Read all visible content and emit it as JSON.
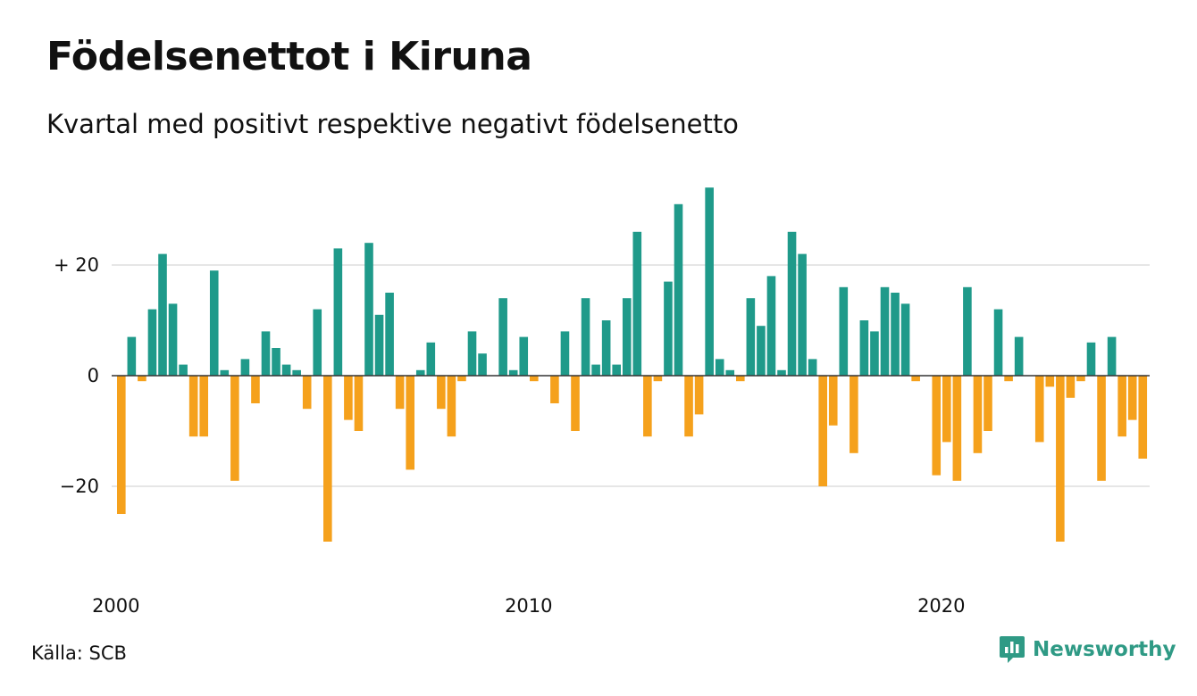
{
  "header": {
    "title": "Födelsenettot i Kiruna",
    "subtitle": "Kvartal med positivt respektive negativt födelsenetto"
  },
  "footer": {
    "source": "Källa: SCB",
    "brand": "Newsworthy"
  },
  "colors": {
    "positive": "#1f9a8a",
    "negative": "#f5a11c",
    "grid": "#dddddd",
    "baseline": "#333333",
    "brand": "#2f9a85"
  },
  "chart_data": {
    "type": "bar",
    "x_start": "2000 Q1",
    "values": [
      -25,
      7,
      -1,
      12,
      22,
      13,
      2,
      -11,
      -11,
      19,
      1,
      -19,
      3,
      -5,
      8,
      5,
      2,
      1,
      -6,
      12,
      -30,
      23,
      -8,
      -10,
      24,
      11,
      15,
      -6,
      -17,
      1,
      6,
      -6,
      -11,
      -1,
      8,
      4,
      0,
      14,
      1,
      7,
      -1,
      0,
      -5,
      8,
      -10,
      14,
      2,
      10,
      2,
      14,
      26,
      -11,
      -1,
      17,
      31,
      -11,
      -7,
      34,
      3,
      1,
      -1,
      14,
      9,
      18,
      1,
      26,
      22,
      3,
      -20,
      -9,
      16,
      -14,
      10,
      8,
      16,
      15,
      13,
      -1,
      0,
      -18,
      -12,
      -19,
      16,
      -14,
      -10,
      12,
      -1,
      7,
      0,
      -12,
      -2,
      -30,
      -4,
      -1,
      6,
      -19,
      7,
      -11,
      -8,
      -15
    ],
    "ylim": [
      -30,
      34
    ],
    "y_ticks": [
      {
        "value": 20,
        "label": "+ 20"
      },
      {
        "value": 0,
        "label": "0"
      },
      {
        "value": -20,
        "label": "−20"
      }
    ],
    "x_ticks": [
      {
        "index": 0,
        "label": "2000"
      },
      {
        "index": 40,
        "label": "2010"
      },
      {
        "index": 80,
        "label": "2020"
      }
    ],
    "grid": true,
    "legend": "none"
  }
}
